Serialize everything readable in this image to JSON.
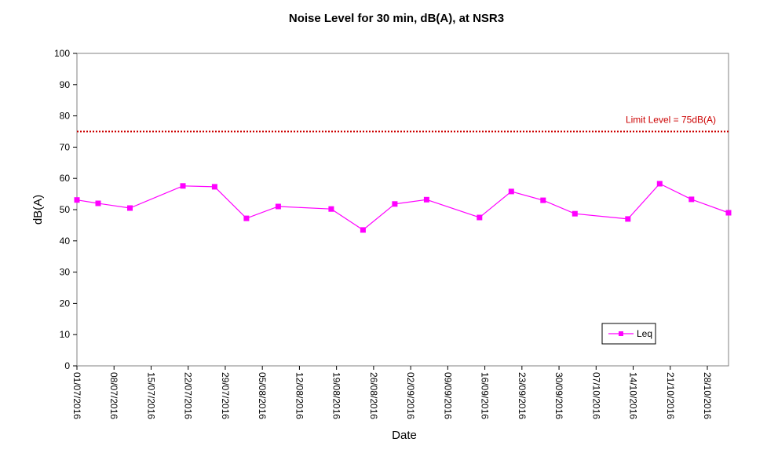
{
  "chart_data": {
    "type": "line",
    "title": "Noise Level for 30 min, dB(A), at NSR3",
    "xlabel": "Date",
    "ylabel": "dB(A)",
    "ylim": [
      0,
      100
    ],
    "yticks": [
      0,
      10,
      20,
      30,
      40,
      50,
      60,
      70,
      80,
      90,
      100
    ],
    "xlim": [
      "2016-07-01",
      "2016-11-01"
    ],
    "xtick_labels": [
      "01/07/2016",
      "08/07/2016",
      "15/07/2016",
      "22/07/2016",
      "29/07/2016",
      "05/08/2016",
      "12/08/2016",
      "19/08/2016",
      "26/08/2016",
      "02/09/2016",
      "09/09/2016",
      "16/09/2016",
      "23/09/2016",
      "30/09/2016",
      "07/10/2016",
      "14/10/2016",
      "21/10/2016",
      "28/10/2016"
    ],
    "xtick_dates": [
      "2016-07-01",
      "2016-07-08",
      "2016-07-15",
      "2016-07-22",
      "2016-07-29",
      "2016-08-05",
      "2016-08-12",
      "2016-08-19",
      "2016-08-26",
      "2016-09-02",
      "2016-09-09",
      "2016-09-16",
      "2016-09-23",
      "2016-09-30",
      "2016-10-07",
      "2016-10-14",
      "2016-10-21",
      "2016-10-28"
    ],
    "grid": false,
    "legend": "bottom-right",
    "series": [
      {
        "name": "Leq",
        "color": "#ff00ff",
        "marker": "square",
        "x": [
          "2016-07-01",
          "2016-07-05",
          "2016-07-11",
          "2016-07-21",
          "2016-07-27",
          "2016-08-02",
          "2016-08-08",
          "2016-08-18",
          "2016-08-24",
          "2016-08-30",
          "2016-09-05",
          "2016-09-15",
          "2016-09-21",
          "2016-09-27",
          "2016-10-03",
          "2016-10-13",
          "2016-10-19",
          "2016-10-25",
          "2016-11-01"
        ],
        "values": [
          53.1,
          52.0,
          50.5,
          57.6,
          57.3,
          47.2,
          51.0,
          50.2,
          43.5,
          51.8,
          53.2,
          47.5,
          55.8,
          53.0,
          48.7,
          47.0,
          58.3,
          53.3,
          49.0
        ]
      }
    ],
    "reference_line": {
      "label": "Limit Level = 75dB(A)",
      "value": 75,
      "color": "#cc0000",
      "style": "dotted"
    }
  }
}
